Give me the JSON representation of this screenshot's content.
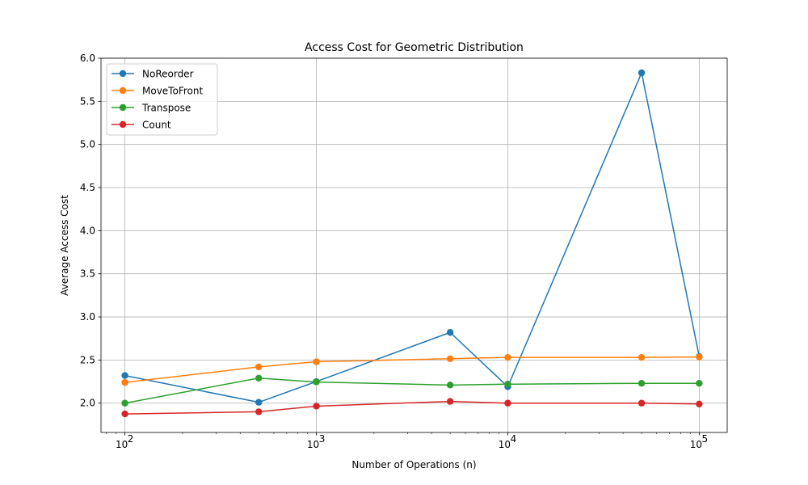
{
  "chart_data": {
    "type": "line",
    "title": "Access Cost for Geometric Distribution",
    "xlabel": "Number of Operations (n)",
    "ylabel": "Average Access Cost",
    "x_scale": "log",
    "x": [
      100,
      500,
      1000,
      5000,
      10000,
      50000,
      100000
    ],
    "xlim": [
      75,
      140000
    ],
    "ylim": [
      1.66,
      6.0
    ],
    "x_ticks": [
      {
        "value": 100,
        "base": "10",
        "exp": "2"
      },
      {
        "value": 1000,
        "base": "10",
        "exp": "3"
      },
      {
        "value": 10000,
        "base": "10",
        "exp": "4"
      },
      {
        "value": 100000,
        "base": "10",
        "exp": "5"
      }
    ],
    "y_ticks": [
      {
        "value": 2.0,
        "label": "2.0"
      },
      {
        "value": 2.5,
        "label": "2.5"
      },
      {
        "value": 3.0,
        "label": "3.0"
      },
      {
        "value": 3.5,
        "label": "3.5"
      },
      {
        "value": 4.0,
        "label": "4.0"
      },
      {
        "value": 4.5,
        "label": "4.5"
      },
      {
        "value": 5.0,
        "label": "5.0"
      },
      {
        "value": 5.5,
        "label": "5.5"
      },
      {
        "value": 6.0,
        "label": "6.0"
      }
    ],
    "grid": true,
    "legend_position": "top-left",
    "series": [
      {
        "name": "NoReorder",
        "color": "#1f77b4",
        "values": [
          2.32,
          2.01,
          2.25,
          2.82,
          2.19,
          5.83,
          2.54
        ]
      },
      {
        "name": "MoveToFront",
        "color": "#ff7f0e",
        "values": [
          2.24,
          2.42,
          2.48,
          2.515,
          2.53,
          2.53,
          2.535
        ]
      },
      {
        "name": "Transpose",
        "color": "#2ca02c",
        "values": [
          2.0,
          2.29,
          2.245,
          2.21,
          2.22,
          2.23,
          2.23
        ]
      },
      {
        "name": "Count",
        "color": "#d62728",
        "values": [
          1.875,
          1.9,
          1.965,
          2.02,
          2.0,
          2.0,
          1.99
        ]
      }
    ]
  }
}
